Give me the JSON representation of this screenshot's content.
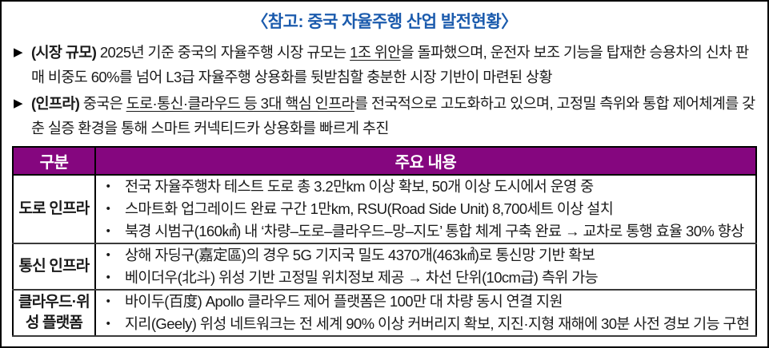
{
  "title": "〈참고: 중국 자율주행 산업 발전현황〉",
  "marker": "▶",
  "bullet_char": "•",
  "colors": {
    "title_blue": "#1b5bad",
    "header_purple": "#85067f",
    "header_text": "#ffffff",
    "body_text": "#1a1a1a",
    "border": "#000000"
  },
  "bullets": [
    {
      "label": "(시장 규모)",
      "pre": " 2025년 기준 중국의 자율주행 시장 규모는 ",
      "underlined": "1조 위안",
      "post": "을 돌파했으며, 운전자 보조 기능을 탑재한 승용차의 신차 판매 비중도 60%를 넘어 L3급 자율주행 상용화를 뒷받침할 충분한 시장 기반이 마련된 상황"
    },
    {
      "label": "(인프라)",
      "pre": " 중국은 ",
      "underlined": "도로·통신·클라우드 등 3대 핵심 인프라",
      "post": "를 전국적으로 고도화하고 있으며, 고정밀 측위와 통합 제어체계를 갖춘 실증 환경을 통해 스마트 커넥티드카 상용화를 빠르게 추진"
    }
  ],
  "table": {
    "headers": [
      "구분",
      "주요 내용"
    ],
    "rows": [
      {
        "category": "도로 인프라",
        "items": [
          "전국 자율주행차 테스트 도로 총 3.2만km 이상 확보, 50개 이상 도시에서 운영 중",
          "스마트화 업그레이드 완료 구간 1만km, RSU(Road Side Unit) 8,700세트 이상 설치",
          "북경 시범구(160㎢) 내 ‘차량–도로–클라우드–망–지도’ 통합 체계 구축 완료 → 교차로 통행 효율 30% 향상"
        ]
      },
      {
        "category": "통신 인프라",
        "items": [
          "상해 자딩구(嘉定區)의 경우 5G 기지국 밀도 4370개(463㎢)로 통신망 기반 확보",
          "베이더우(北斗) 위성 기반 고정밀 위치정보 제공 → 차선 단위(10cm급) 측위 가능"
        ]
      },
      {
        "category": "클라우드·위\n성 플랫폼",
        "items": [
          "바이두(百度) Apollo 클라우드 제어 플랫폼은 100만 대 차량 동시 연결 지원",
          "지리(Geely) 위성 네트워크는 전 세계 90% 이상 커버리지 확보, 지진·지형 재해에 30분 사전 경보 기능 구현"
        ]
      }
    ]
  }
}
